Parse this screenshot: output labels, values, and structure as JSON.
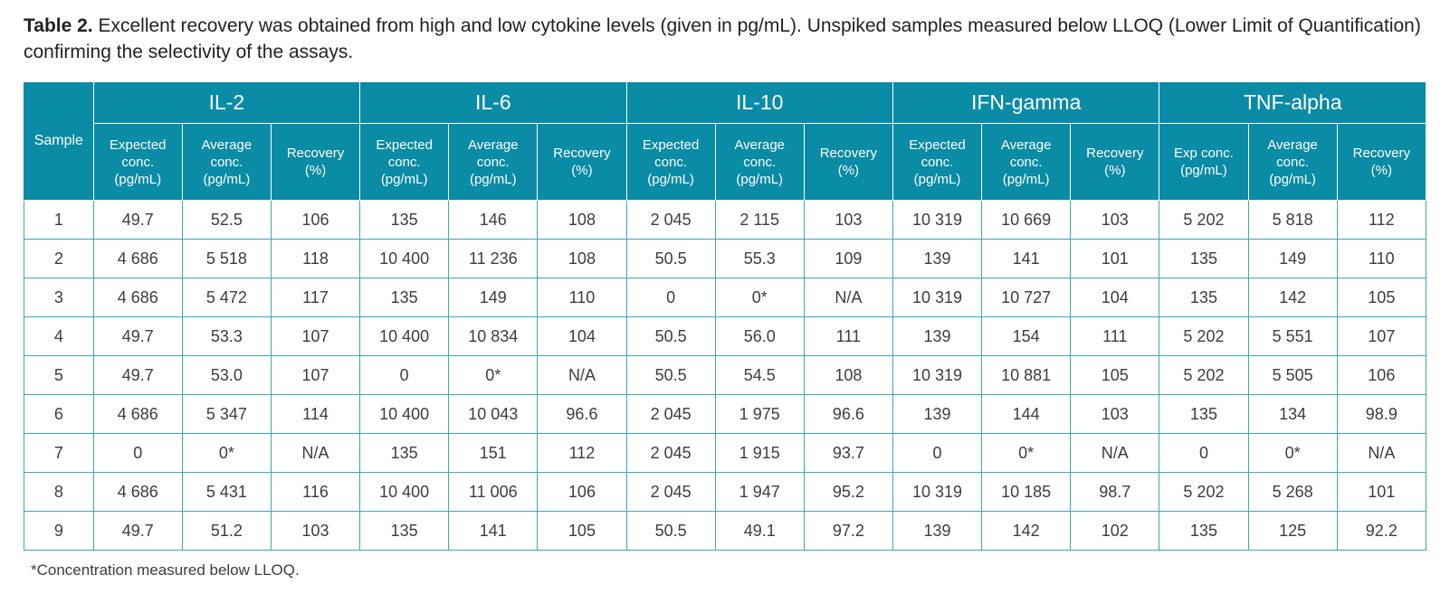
{
  "caption": {
    "label": "Table 2.",
    "text": " Excellent recovery was obtained from high and low cytokine levels (given in pg/mL). Unspiked samples measured below LLOQ (Lower Limit of Quantification) confirming the selectivity of the assays."
  },
  "table": {
    "sample_header": "Sample",
    "groups": [
      {
        "name": "IL-2",
        "subheaders": [
          "Expected\nconc.\n(pg/mL)",
          "Average\nconc.\n(pg/mL)",
          "Recovery\n(%)"
        ]
      },
      {
        "name": "IL-6",
        "subheaders": [
          "Expected\nconc.\n(pg/mL)",
          "Average\nconc.\n(pg/mL)",
          "Recovery\n(%)"
        ]
      },
      {
        "name": "IL-10",
        "subheaders": [
          "Expected\nconc.\n(pg/mL)",
          "Average\nconc.\n(pg/mL)",
          "Recovery\n(%)"
        ]
      },
      {
        "name": "IFN-gamma",
        "subheaders": [
          "Expected\nconc.\n(pg/mL)",
          "Average\nconc.\n(pg/mL)",
          "Recovery\n(%)"
        ]
      },
      {
        "name": "TNF-alpha",
        "subheaders": [
          "Exp conc.\n(pg/mL)",
          "Average\nconc.\n(pg/mL)",
          "Recovery\n(%)"
        ]
      }
    ],
    "rows": [
      [
        "1",
        "49.7",
        "52.5",
        "106",
        "135",
        "146",
        "108",
        "2 045",
        "2 115",
        "103",
        "10 319",
        "10 669",
        "103",
        "5 202",
        "5 818",
        "112"
      ],
      [
        "2",
        "4 686",
        "5 518",
        "118",
        "10 400",
        "11 236",
        "108",
        "50.5",
        "55.3",
        "109",
        "139",
        "141",
        "101",
        "135",
        "149",
        "110"
      ],
      [
        "3",
        "4 686",
        "5 472",
        "117",
        "135",
        "149",
        "110",
        "0",
        "0*",
        "N/A",
        "10 319",
        "10 727",
        "104",
        "135",
        "142",
        "105"
      ],
      [
        "4",
        "49.7",
        "53.3",
        "107",
        "10 400",
        "10 834",
        "104",
        "50.5",
        "56.0",
        "111",
        "139",
        "154",
        "111",
        "5 202",
        "5 551",
        "107"
      ],
      [
        "5",
        "49.7",
        "53.0",
        "107",
        "0",
        "0*",
        "N/A",
        "50.5",
        "54.5",
        "108",
        "10 319",
        "10 881",
        "105",
        "5 202",
        "5 505",
        "106"
      ],
      [
        "6",
        "4 686",
        "5 347",
        "114",
        "10 400",
        "10 043",
        "96.6",
        "2 045",
        "1 975",
        "96.6",
        "139",
        "144",
        "103",
        "135",
        "134",
        "98.9"
      ],
      [
        "7",
        "0",
        "0*",
        "N/A",
        "135",
        "151",
        "112",
        "2 045",
        "1 915",
        "93.7",
        "0",
        "0*",
        "N/A",
        "0",
        "0*",
        "N/A"
      ],
      [
        "8",
        "4 686",
        "5 431",
        "116",
        "10 400",
        "11 006",
        "106",
        "2 045",
        "1 947",
        "95.2",
        "10 319",
        "10 185",
        "98.7",
        "5 202",
        "5 268",
        "101"
      ],
      [
        "9",
        "49.7",
        "51.2",
        "103",
        "135",
        "141",
        "105",
        "50.5",
        "49.1",
        "97.2",
        "139",
        "142",
        "102",
        "135",
        "125",
        "92.2"
      ]
    ]
  },
  "footnote": "*Concentration measured below LLOQ.",
  "colors": {
    "header_bg": "#0a8ba6",
    "grid": "#3aa7bd"
  }
}
